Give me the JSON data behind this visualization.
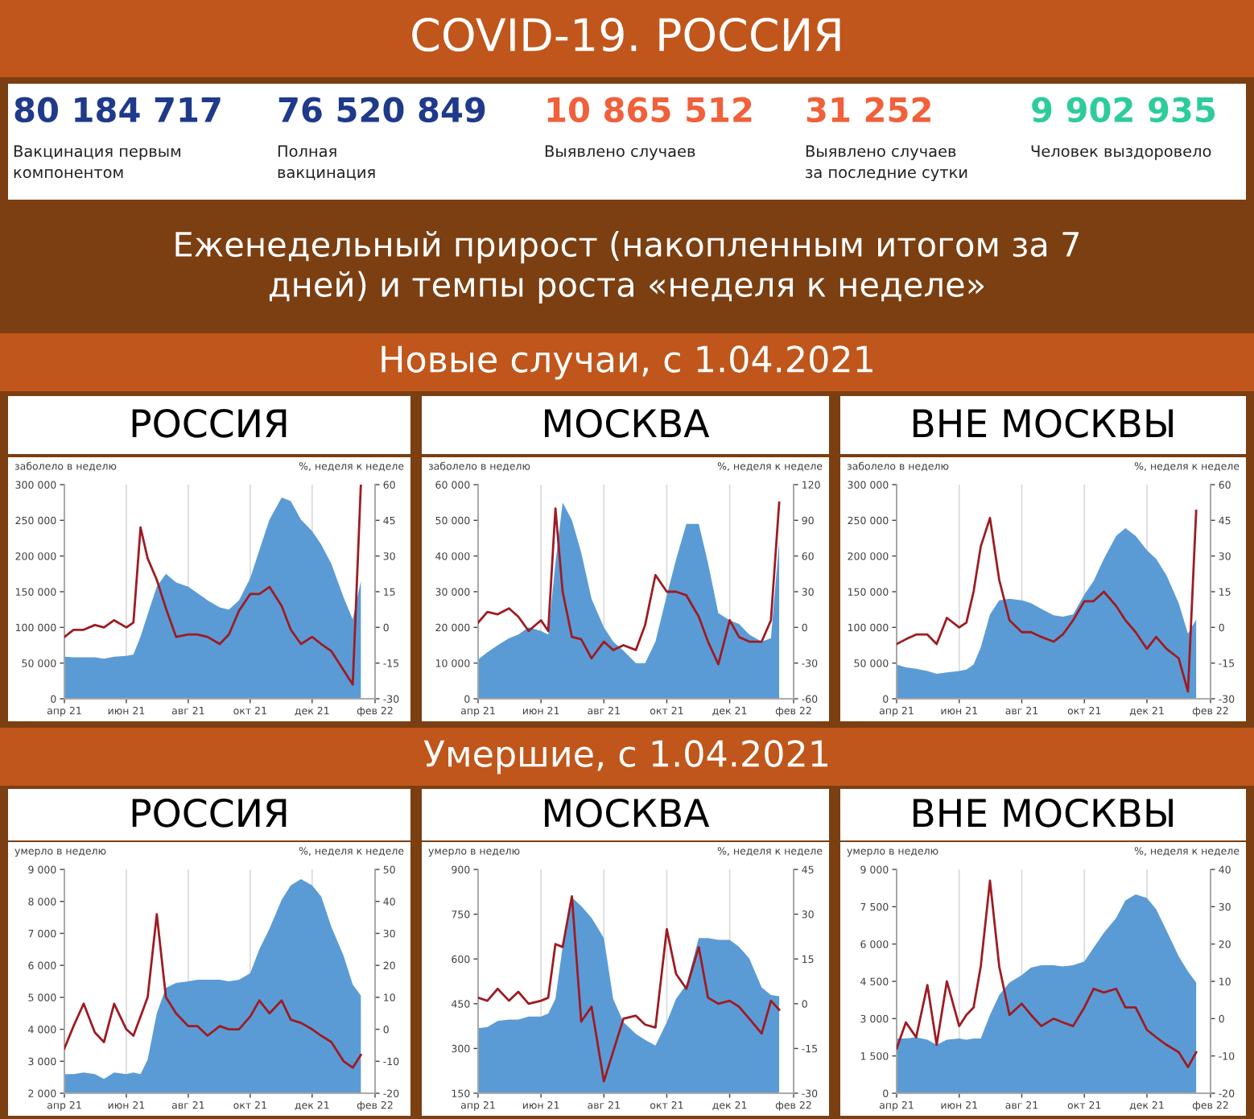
{
  "chart_data": [
    {
      "type": "other",
      "title": "COVID-19. РОССИЯ",
      "subtitle": "Еженедельный прирост (накопленным итогом за 7\nдней) и темпы роста «неделя к неделе»",
      "annotations": [
        "80 184 717",
        "Вакцинация первым\nкомпонентом",
        "76 520 849",
        "Полная\nвакцинация",
        "10 865 512",
        "Выявлено случаев",
        "31 252",
        "Выявлено случаев\nза последние сутки",
        "9 902 935",
        "Человек выздоровело",
        "Новые случаи, с 1.04.2021",
        "Умершие, с 1.04.2021"
      ],
      "colors": [
        "#1f3a8a",
        "#1f3a8a",
        "#f0603a",
        "#f0603a",
        "#2ecc9a"
      ]
    },
    {
      "type": "area",
      "title": "РОССИЯ",
      "ylabel": "заболело в неделю",
      "y2label": "%, неделя к неделе",
      "grid": "x",
      "x": [
        "2021-04-01",
        "2021-04-10",
        "2021-04-20",
        "2021-05-01",
        "2021-05-10",
        "2021-05-20",
        "2021-06-01",
        "2021-06-08",
        "2021-06-15",
        "2021-06-22",
        "2021-07-01",
        "2021-07-10",
        "2021-07-20",
        "2021-08-01",
        "2021-08-10",
        "2021-08-20",
        "2021-09-01",
        "2021-09-10",
        "2021-09-20",
        "2021-10-01",
        "2021-10-10",
        "2021-10-20",
        "2021-11-01",
        "2021-11-10",
        "2021-11-20",
        "2021-12-01",
        "2021-12-10",
        "2021-12-20",
        "2022-01-01",
        "2022-01-10",
        "2022-01-18"
      ],
      "xlim": [
        "2021-04-01",
        "2022-02-01"
      ],
      "xticks": [
        {
          "value": "2021-04-01",
          "label": "апр 21"
        },
        {
          "value": "2021-06-01",
          "label": "июн 21"
        },
        {
          "value": "2021-08-01",
          "label": "авг 21"
        },
        {
          "value": "2021-10-01",
          "label": "окт 21"
        },
        {
          "value": "2021-12-01",
          "label": "дек 21"
        },
        {
          "value": "2022-02-01",
          "label": "фев 22"
        }
      ],
      "ylim": [
        0,
        300000
      ],
      "yticks": [
        0,
        {
          "value": 50000,
          "label": "50 000"
        },
        {
          "value": 100000,
          "label": "100 000"
        },
        {
          "value": 150000,
          "label": "150 000"
        },
        {
          "value": 200000,
          "label": "200 000"
        },
        {
          "value": 250000,
          "label": "250 000"
        },
        {
          "value": 300000,
          "label": "300 000"
        }
      ],
      "y2lim": [
        -30,
        60
      ],
      "y2ticks": [
        -30,
        -15,
        0,
        15,
        30,
        45,
        60
      ],
      "series": [
        {
          "type": "area",
          "color": "#5b9bd5",
          "values": [
            59000,
            58000,
            58000,
            58000,
            56000,
            59000,
            60000,
            62000,
            87000,
            118000,
            157000,
            175000,
            163000,
            157000,
            148000,
            138000,
            128000,
            125000,
            138000,
            169000,
            208000,
            251000,
            282000,
            277000,
            251000,
            235000,
            216000,
            189000,
            142000,
            111000,
            165000
          ]
        },
        {
          "type": "line",
          "axis": "y2",
          "color": "#9e1b22",
          "values": [
            -4,
            -1,
            -1,
            1,
            0,
            3,
            0,
            2,
            42,
            29,
            20,
            8,
            -4,
            -3,
            -3,
            -4,
            -7,
            -3,
            7,
            14,
            14,
            17,
            9,
            -1,
            -7,
            -4,
            -7,
            -10,
            -18,
            -24,
            60
          ]
        }
      ]
    },
    {
      "type": "area",
      "title": "МОСКВА",
      "ylabel": "заболело в неделю",
      "y2label": "%, неделя к неделе",
      "grid": "x",
      "x": [
        "2021-04-01",
        "2021-04-10",
        "2021-04-20",
        "2021-05-01",
        "2021-05-10",
        "2021-05-20",
        "2021-06-01",
        "2021-06-08",
        "2021-06-15",
        "2021-06-22",
        "2021-07-01",
        "2021-07-10",
        "2021-07-20",
        "2021-08-01",
        "2021-08-10",
        "2021-08-20",
        "2021-09-01",
        "2021-09-10",
        "2021-09-20",
        "2021-10-01",
        "2021-10-10",
        "2021-10-20",
        "2021-11-01",
        "2021-11-10",
        "2021-11-20",
        "2021-12-01",
        "2021-12-10",
        "2021-12-20",
        "2022-01-01",
        "2022-01-10",
        "2022-01-18"
      ],
      "xlim": [
        "2021-04-01",
        "2022-02-01"
      ],
      "xticks": [
        {
          "value": "2021-04-01",
          "label": "апр 21"
        },
        {
          "value": "2021-06-01",
          "label": "июн 21"
        },
        {
          "value": "2021-08-01",
          "label": "авг 21"
        },
        {
          "value": "2021-10-01",
          "label": "окт 21"
        },
        {
          "value": "2021-12-01",
          "label": "дек 21"
        },
        {
          "value": "2022-02-01",
          "label": "фев 22"
        }
      ],
      "ylim": [
        0,
        60000
      ],
      "yticks": [
        0,
        {
          "value": 10000,
          "label": "10 000"
        },
        {
          "value": 20000,
          "label": "20 000"
        },
        {
          "value": 30000,
          "label": "30 000"
        },
        {
          "value": 40000,
          "label": "40 000"
        },
        {
          "value": 50000,
          "label": "50 000"
        },
        {
          "value": 60000,
          "label": "60 000"
        }
      ],
      "y2lim": [
        -60,
        120
      ],
      "y2ticks": [
        -60,
        -30,
        0,
        30,
        60,
        90,
        120
      ],
      "series": [
        {
          "type": "area",
          "color": "#5b9bd5",
          "values": [
            11000,
            13000,
            15000,
            17000,
            18000,
            20000,
            19000,
            18000,
            38000,
            55000,
            50000,
            41000,
            28000,
            20000,
            16000,
            13500,
            10000,
            10000,
            16000,
            29000,
            39000,
            49000,
            49000,
            38000,
            24000,
            22000,
            21000,
            18000,
            16000,
            17000,
            44000
          ]
        },
        {
          "type": "line",
          "axis": "y2",
          "color": "#9e1b22",
          "values": [
            4,
            13,
            11,
            16,
            9,
            -3,
            6,
            -3,
            100,
            30,
            -8,
            -10,
            -26,
            -12,
            -19,
            -15,
            -19,
            2,
            44,
            30,
            30,
            27,
            9,
            -12,
            -31,
            6,
            -8,
            -12,
            -12,
            6,
            105
          ]
        }
      ]
    },
    {
      "type": "area",
      "title": "ВНЕ МОСКВЫ",
      "ylabel": "заболело в неделю",
      "y2label": "%, неделя к неделе",
      "grid": "x",
      "x": [
        "2021-04-01",
        "2021-04-10",
        "2021-04-20",
        "2021-05-01",
        "2021-05-10",
        "2021-05-20",
        "2021-06-01",
        "2021-06-08",
        "2021-06-15",
        "2021-06-22",
        "2021-07-01",
        "2021-07-10",
        "2021-07-20",
        "2021-08-01",
        "2021-08-10",
        "2021-08-20",
        "2021-09-01",
        "2021-09-10",
        "2021-09-20",
        "2021-10-01",
        "2021-10-10",
        "2021-10-20",
        "2021-11-01",
        "2021-11-10",
        "2021-11-20",
        "2021-12-01",
        "2021-12-10",
        "2021-12-20",
        "2022-01-01",
        "2022-01-10",
        "2022-01-18"
      ],
      "xlim": [
        "2021-04-01",
        "2022-02-01"
      ],
      "xticks": [
        {
          "value": "2021-04-01",
          "label": "апр 21"
        },
        {
          "value": "2021-06-01",
          "label": "июн 21"
        },
        {
          "value": "2021-08-01",
          "label": "авг 21"
        },
        {
          "value": "2021-10-01",
          "label": "окт 21"
        },
        {
          "value": "2021-12-01",
          "label": "дек 21"
        },
        {
          "value": "2022-02-01",
          "label": "фев 22"
        }
      ],
      "ylim": [
        0,
        300000
      ],
      "yticks": [
        0,
        {
          "value": 50000,
          "label": "50 000"
        },
        {
          "value": 100000,
          "label": "100 000"
        },
        {
          "value": 150000,
          "label": "150 000"
        },
        {
          "value": 200000,
          "label": "200 000"
        },
        {
          "value": 250000,
          "label": "250 000"
        },
        {
          "value": 300000,
          "label": "300 000"
        }
      ],
      "y2lim": [
        -30,
        60
      ],
      "y2ticks": [
        -30,
        -15,
        0,
        15,
        30,
        45,
        60
      ],
      "series": [
        {
          "type": "area",
          "color": "#5b9bd5",
          "values": [
            48000,
            44000,
            42000,
            39000,
            35000,
            37000,
            39000,
            41000,
            48000,
            72000,
            118000,
            138000,
            140000,
            138000,
            134000,
            126000,
            117000,
            115000,
            118000,
            146000,
            165000,
            196000,
            228000,
            239000,
            228000,
            208000,
            196000,
            173000,
            134000,
            91000,
            111000
          ]
        },
        {
          "type": "line",
          "axis": "y2",
          "color": "#9e1b22",
          "values": [
            -7,
            -5,
            -3,
            -3,
            -7,
            4,
            0,
            2,
            15,
            34,
            46,
            20,
            3,
            -2,
            -2,
            -4,
            -6,
            -3,
            3,
            11,
            11,
            15,
            9,
            3,
            -2,
            -9,
            -4,
            -9,
            -13,
            -27,
            49
          ]
        }
      ]
    },
    {
      "type": "area",
      "title": "РОССИЯ",
      "ylabel": "умерло в неделю",
      "y2label": "%, неделя к неделе",
      "grid": "x",
      "x": [
        "2021-04-01",
        "2021-04-10",
        "2021-04-20",
        "2021-05-01",
        "2021-05-10",
        "2021-05-20",
        "2021-06-01",
        "2021-06-08",
        "2021-06-15",
        "2021-06-22",
        "2021-07-01",
        "2021-07-10",
        "2021-07-20",
        "2021-08-01",
        "2021-08-10",
        "2021-08-20",
        "2021-09-01",
        "2021-09-10",
        "2021-09-20",
        "2021-10-01",
        "2021-10-10",
        "2021-10-20",
        "2021-11-01",
        "2021-11-10",
        "2021-11-20",
        "2021-12-01",
        "2021-12-10",
        "2021-12-20",
        "2022-01-01",
        "2022-01-10",
        "2022-01-18"
      ],
      "xlim": [
        "2021-04-01",
        "2022-02-01"
      ],
      "xticks": [
        {
          "value": "2021-04-01",
          "label": "апр 21"
        },
        {
          "value": "2021-06-01",
          "label": "июн 21"
        },
        {
          "value": "2021-08-01",
          "label": "авг 21"
        },
        {
          "value": "2021-10-01",
          "label": "окт 21"
        },
        {
          "value": "2021-12-01",
          "label": "дек 21"
        },
        {
          "value": "2022-02-01",
          "label": "фев 22"
        }
      ],
      "ylim": [
        2000,
        9000
      ],
      "yticks": [
        {
          "value": 2000,
          "label": "2 000"
        },
        {
          "value": 3000,
          "label": "3 000"
        },
        {
          "value": 4000,
          "label": "4 000"
        },
        {
          "value": 5000,
          "label": "5 000"
        },
        {
          "value": 6000,
          "label": "6 000"
        },
        {
          "value": 7000,
          "label": "7 000"
        },
        {
          "value": 8000,
          "label": "8 000"
        },
        {
          "value": 9000,
          "label": "9 000"
        }
      ],
      "y2lim": [
        -20,
        50
      ],
      "y2ticks": [
        -20,
        -10,
        0,
        10,
        20,
        30,
        40,
        50
      ],
      "series": [
        {
          "type": "area",
          "color": "#5b9bd5",
          "values": [
            2600,
            2600,
            2650,
            2600,
            2450,
            2650,
            2600,
            2650,
            2600,
            3050,
            4500,
            5300,
            5450,
            5500,
            5550,
            5550,
            5550,
            5500,
            5550,
            5750,
            6500,
            7150,
            8050,
            8500,
            8700,
            8500,
            8150,
            7200,
            6300,
            5400,
            5050
          ]
        },
        {
          "type": "line",
          "axis": "y2",
          "color": "#9e1b22",
          "values": [
            -6,
            1,
            8,
            -1,
            -4,
            8,
            0,
            -2,
            4,
            10,
            36,
            10,
            5,
            1,
            1,
            -2,
            1,
            0,
            0,
            4,
            9,
            5,
            9,
            3,
            2,
            0,
            -2,
            -4,
            -10,
            -12,
            -8
          ]
        }
      ]
    },
    {
      "type": "area",
      "title": "МОСКВА",
      "ylabel": "умерло в неделю",
      "y2label": "%, неделя к неделе",
      "grid": "x",
      "x": [
        "2021-04-01",
        "2021-04-10",
        "2021-04-20",
        "2021-05-01",
        "2021-05-10",
        "2021-05-20",
        "2021-06-01",
        "2021-06-08",
        "2021-06-15",
        "2021-06-22",
        "2021-07-01",
        "2021-07-10",
        "2021-07-20",
        "2021-08-01",
        "2021-08-10",
        "2021-08-20",
        "2021-09-01",
        "2021-09-10",
        "2021-09-20",
        "2021-10-01",
        "2021-10-10",
        "2021-10-20",
        "2021-11-01",
        "2021-11-10",
        "2021-11-20",
        "2021-12-01",
        "2021-12-10",
        "2021-12-20",
        "2022-01-01",
        "2022-01-10",
        "2022-01-18"
      ],
      "xlim": [
        "2021-04-01",
        "2022-02-01"
      ],
      "xticks": [
        {
          "value": "2021-04-01",
          "label": "апр 21"
        },
        {
          "value": "2021-06-01",
          "label": "июн 21"
        },
        {
          "value": "2021-08-01",
          "label": "авг 21"
        },
        {
          "value": "2021-10-01",
          "label": "окт 21"
        },
        {
          "value": "2021-12-01",
          "label": "дек 21"
        },
        {
          "value": "2022-02-01",
          "label": "фев 22"
        }
      ],
      "ylim": [
        150,
        900
      ],
      "yticks": [
        150,
        300,
        450,
        600,
        750,
        900
      ],
      "y2lim": [
        -30,
        45
      ],
      "y2ticks": [
        -30,
        -15,
        0,
        15,
        30,
        45
      ],
      "series": [
        {
          "type": "area",
          "color": "#5b9bd5",
          "values": [
            368,
            372,
            392,
            397,
            397,
            407,
            407,
            417,
            466,
            641,
            806,
            777,
            738,
            670,
            466,
            388,
            349,
            329,
            310,
            388,
            466,
            514,
            670,
            670,
            664,
            664,
            641,
            602,
            505,
            479,
            475
          ]
        },
        {
          "type": "line",
          "axis": "y2",
          "color": "#9e1b22",
          "values": [
            2,
            1,
            5,
            1,
            4,
            0,
            1,
            2,
            20,
            19,
            36,
            -6,
            -1,
            -26,
            -16,
            -5,
            -4,
            -7,
            -8,
            25,
            10,
            5,
            19,
            2,
            0,
            1,
            -1,
            -5,
            -10,
            1,
            -2
          ]
        }
      ]
    },
    {
      "type": "area",
      "title": "ВНЕ МОСКВЫ",
      "ylabel": "умерло в неделю",
      "y2label": "%, неделя к неделе",
      "grid": "x",
      "x": [
        "2021-04-01",
        "2021-04-10",
        "2021-04-20",
        "2021-05-01",
        "2021-05-10",
        "2021-05-20",
        "2021-06-01",
        "2021-06-08",
        "2021-06-15",
        "2021-06-22",
        "2021-07-01",
        "2021-07-10",
        "2021-07-20",
        "2021-08-01",
        "2021-08-10",
        "2021-08-20",
        "2021-09-01",
        "2021-09-10",
        "2021-09-20",
        "2021-10-01",
        "2021-10-10",
        "2021-10-20",
        "2021-11-01",
        "2021-11-10",
        "2021-11-20",
        "2021-12-01",
        "2021-12-10",
        "2021-12-20",
        "2022-01-01",
        "2022-01-10",
        "2022-01-18"
      ],
      "xlim": [
        "2021-04-01",
        "2022-02-01"
      ],
      "xticks": [
        {
          "value": "2021-04-01",
          "label": "апр 21"
        },
        {
          "value": "2021-06-01",
          "label": "июн 21"
        },
        {
          "value": "2021-08-01",
          "label": "авг 21"
        },
        {
          "value": "2021-10-01",
          "label": "окт 21"
        },
        {
          "value": "2021-12-01",
          "label": "дек 21"
        },
        {
          "value": "2022-02-01",
          "label": "фев 22"
        }
      ],
      "ylim": [
        0,
        9000
      ],
      "yticks": [
        0,
        {
          "value": 1500,
          "label": "1 500"
        },
        {
          "value": 3000,
          "label": "3 000"
        },
        {
          "value": 4500,
          "label": "4 500"
        },
        {
          "value": 6000,
          "label": "6 000"
        },
        {
          "value": 7500,
          "label": "7 500"
        },
        {
          "value": 9000,
          "label": "9 000"
        }
      ],
      "y2lim": [
        -20,
        40
      ],
      "y2ticks": [
        -20,
        -10,
        0,
        10,
        20,
        30,
        40
      ],
      "series": [
        {
          "type": "area",
          "color": "#5b9bd5",
          "values": [
            2200,
            2200,
            2250,
            2150,
            1950,
            2150,
            2200,
            2150,
            2200,
            2200,
            3150,
            3950,
            4450,
            4750,
            5050,
            5150,
            5150,
            5100,
            5150,
            5300,
            5850,
            6450,
            7050,
            7750,
            8000,
            7850,
            7400,
            6550,
            5500,
            4900,
            4450
          ]
        },
        {
          "type": "line",
          "axis": "y2",
          "color": "#9e1b22",
          "values": [
            -8,
            -1,
            -5,
            9,
            -7,
            10,
            -2,
            1,
            3,
            14,
            37,
            14,
            1,
            4,
            1,
            -2,
            0,
            -1,
            -2,
            3,
            8,
            7,
            8,
            3,
            3,
            -3,
            -5,
            -7,
            -9,
            -13,
            -9
          ]
        }
      ]
    }
  ]
}
